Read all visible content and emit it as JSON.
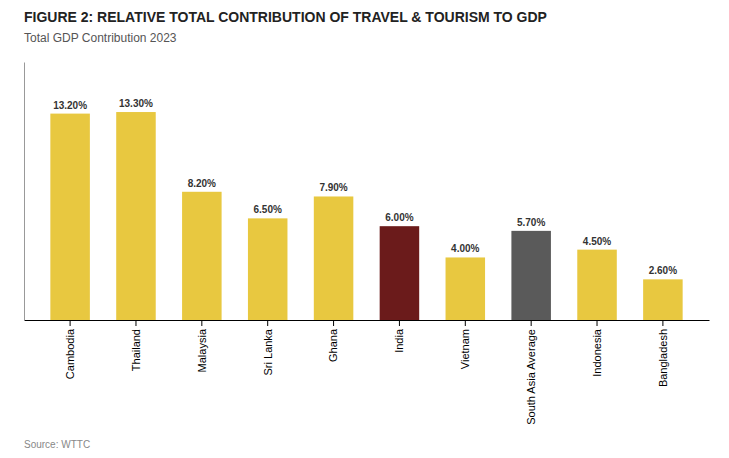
{
  "chart_data": {
    "type": "bar",
    "title": "FIGURE 2: RELATIVE TOTAL CONTRIBUTION OF TRAVEL & TOURISM TO GDP",
    "subtitle": "Total GDP Contribution 2023",
    "annotations": [
      "Source: WTTC"
    ],
    "categories": [
      "Cambodia",
      "Thailand",
      "Malaysia",
      "Sri Lanka",
      "Ghana",
      "India",
      "Vietnam",
      "South Asia Average",
      "Indonesia",
      "Bangladesh"
    ],
    "values": [
      13.2,
      13.3,
      8.2,
      6.5,
      7.9,
      6.0,
      4.0,
      5.7,
      4.5,
      2.6
    ],
    "value_labels": [
      "13.20%",
      "13.30%",
      "8.20%",
      "6.50%",
      "7.90%",
      "6.00%",
      "4.00%",
      "5.70%",
      "4.50%",
      "2.60%"
    ],
    "colors": [
      "#E8C840",
      "#E8C840",
      "#E8C840",
      "#E8C840",
      "#E8C840",
      "#6B1B1B",
      "#E8C840",
      "#5A5A5A",
      "#E8C840",
      "#E8C840"
    ],
    "ylim": [
      0,
      16.5
    ],
    "grid": false,
    "data_labels": true,
    "tick_labels": "x"
  }
}
